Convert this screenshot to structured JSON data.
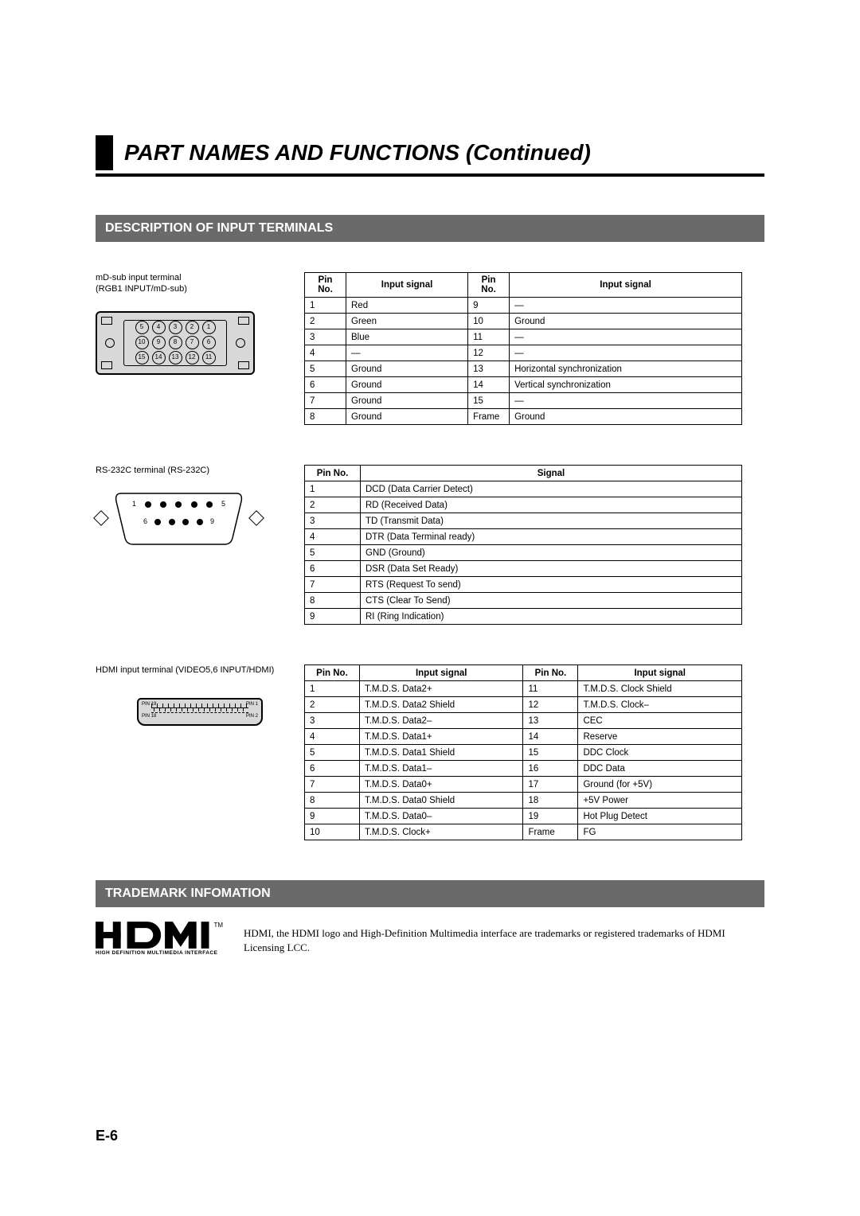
{
  "title": "PART NAMES AND FUNCTIONS (Continued)",
  "section1": "DESCRIPTION OF INPUT TERMINALS",
  "section2": "TRADEMARK INFOMATION",
  "pageNum": "E-6",
  "mdsub": {
    "label1": "mD-sub input terminal",
    "label2": "(RGB1 INPUT/mD-sub)",
    "h_pin": "Pin No.",
    "h_sig": "Input signal",
    "rows": [
      {
        "p1": "1",
        "s1": "Red",
        "p2": "9",
        "s2": "—"
      },
      {
        "p1": "2",
        "s1": "Green",
        "p2": "10",
        "s2": "Ground"
      },
      {
        "p1": "3",
        "s1": "Blue",
        "p2": "11",
        "s2": "—"
      },
      {
        "p1": "4",
        "s1": "—",
        "p2": "12",
        "s2": "—"
      },
      {
        "p1": "5",
        "s1": "Ground",
        "p2": "13",
        "s2": "Horizontal synchronization"
      },
      {
        "p1": "6",
        "s1": "Ground",
        "p2": "14",
        "s2": "Vertical synchronization"
      },
      {
        "p1": "7",
        "s1": "Ground",
        "p2": "15",
        "s2": "—"
      },
      {
        "p1": "8",
        "s1": "Ground",
        "p2": "Frame",
        "s2": "Ground"
      }
    ]
  },
  "rs232": {
    "label": "RS-232C terminal (RS-232C)",
    "h_pin": "Pin No.",
    "h_sig": "Signal",
    "conLabels": {
      "l1": "1",
      "l5": "5",
      "l6": "6",
      "l9": "9"
    },
    "rows": [
      {
        "p": "1",
        "s": "DCD (Data Carrier Detect)"
      },
      {
        "p": "2",
        "s": "RD (Received Data)"
      },
      {
        "p": "3",
        "s": "TD (Transmit Data)"
      },
      {
        "p": "4",
        "s": "DTR (Data Terminal ready)"
      },
      {
        "p": "5",
        "s": "GND (Ground)"
      },
      {
        "p": "6",
        "s": "DSR (Data Set Ready)"
      },
      {
        "p": "7",
        "s": "RTS (Request To send)"
      },
      {
        "p": "8",
        "s": "CTS (Clear To Send)"
      },
      {
        "p": "9",
        "s": "RI (Ring Indication)"
      }
    ]
  },
  "hdmi": {
    "label": "HDMI input terminal (VIDEO5,6 INPUT/HDMI)",
    "h_pin": "Pin No.",
    "h_sig": "Input signal",
    "conLabels": {
      "p19": "PIN 19",
      "p1": "PIN 1",
      "p18": "PIN 18",
      "p2": "PIN 2"
    },
    "rows": [
      {
        "p1": "1",
        "s1": "T.M.D.S. Data2+",
        "p2": "11",
        "s2": "T.M.D.S. Clock Shield"
      },
      {
        "p1": "2",
        "s1": "T.M.D.S. Data2 Shield",
        "p2": "12",
        "s2": "T.M.D.S. Clock–"
      },
      {
        "p1": "3",
        "s1": "T.M.D.S. Data2–",
        "p2": "13",
        "s2": "CEC"
      },
      {
        "p1": "4",
        "s1": "T.M.D.S. Data1+",
        "p2": "14",
        "s2": "Reserve"
      },
      {
        "p1": "5",
        "s1": "T.M.D.S. Data1 Shield",
        "p2": "15",
        "s2": "DDC Clock"
      },
      {
        "p1": "6",
        "s1": "T.M.D.S. Data1–",
        "p2": "16",
        "s2": "DDC Data"
      },
      {
        "p1": "7",
        "s1": "T.M.D.S. Data0+",
        "p2": "17",
        "s2": "Ground (for +5V)"
      },
      {
        "p1": "8",
        "s1": "T.M.D.S. Data0 Shield",
        "p2": "18",
        "s2": "+5V Power"
      },
      {
        "p1": "9",
        "s1": "T.M.D.S. Data0–",
        "p2": "19",
        "s2": "Hot Plug Detect"
      },
      {
        "p1": "10",
        "s1": "T.M.D.S. Clock+",
        "p2": "Frame",
        "s2": "FG"
      }
    ]
  },
  "trademark": {
    "logoSub": "HIGH DEFINITION MULTIMEDIA INTERFACE",
    "tm": "TM",
    "text": "HDMI, the HDMI logo and High-Definition Multimedia interface are trademarks or registered trademarks of HDMI Licensing LCC."
  }
}
